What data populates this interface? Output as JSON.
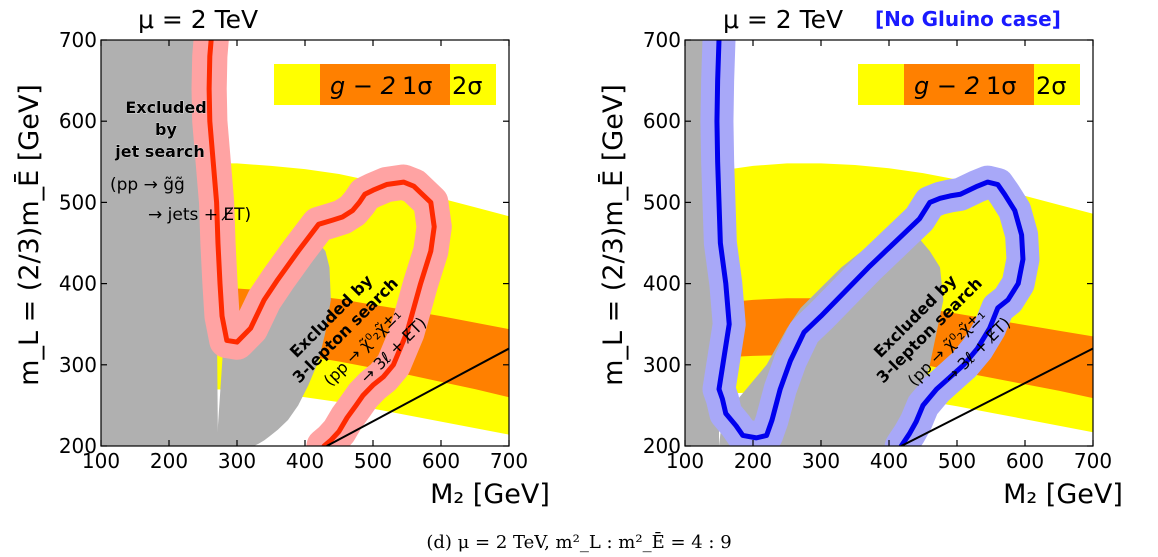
{
  "caption": "(d) μ = 2 TeV, m²_L : m²_Ē = 4 : 9",
  "colors": {
    "sigma1": "#ff8000",
    "sigma2": "#ffff00",
    "excluded": "#b0b0b0",
    "left_boundary": "#ff2a00",
    "left_band": "#ffa3a3",
    "right_boundary": "#0000ee",
    "right_band": "#a8a8f8",
    "no_gluino_label": "#1a1aff"
  },
  "chart_data": [
    {
      "type": "area",
      "title": "μ = 2 TeV",
      "title_note": "",
      "xlabel": "M₂ [GeV]",
      "ylabel": "m_L = (2/3)m_Ē [GeV]",
      "xlim": [
        100,
        700
      ],
      "ylim": [
        200,
        700
      ],
      "xticks": [
        "100",
        "200",
        "300",
        "400",
        "500",
        "600",
        "700"
      ],
      "yticks": [
        "200",
        "300",
        "400",
        "500",
        "600",
        "700"
      ],
      "legend": {
        "placement": "top-right",
        "label": "g − 2",
        "entries": [
          "1σ",
          "2σ"
        ]
      },
      "annotations": {
        "jet": [
          "Excluded",
          "by",
          "jet search",
          "(pp → g̃g̃",
          "→ jets + E̸T)"
        ],
        "lepton": [
          "Excluded by",
          "3-lepton search",
          "(pp → χ̃⁰₂χ̃±₁",
          "→ 3ℓ + E̸T)"
        ]
      },
      "series": [
        {
          "name": "g − 2 2σ",
          "x": [
            255,
            300,
            350,
            400,
            450,
            500,
            550,
            600,
            650,
            700
          ],
          "y_lower": [
            270,
            269,
            266,
            260,
            254,
            246,
            238,
            230,
            222,
            214
          ],
          "y_upper": [
            548,
            548,
            545,
            541,
            535,
            526,
            516,
            505,
            494,
            483
          ]
        },
        {
          "name": "g − 2 1σ",
          "x": [
            255,
            300,
            350,
            400,
            450,
            500,
            550,
            600,
            650,
            700
          ],
          "y_lower": [
            322,
            320,
            316,
            311,
            304,
            296,
            288,
            279,
            270,
            260
          ],
          "y_upper": [
            395,
            394,
            391,
            386,
            381,
            374,
            367,
            360,
            352,
            344
          ]
        }
      ],
      "excluded_jet": {
        "x": [
          100,
          255,
          260,
          262,
          268,
          270,
          272,
          100
        ],
        "y": [
          700,
          700,
          640,
          560,
          480,
          400,
          200,
          200
        ]
      },
      "excluded_3lepton": {
        "x": [
          270,
          280,
          300,
          330,
          350,
          375,
          395,
          410,
          422,
          430,
          436,
          438,
          430,
          420,
          405,
          390,
          375,
          360,
          348,
          340,
          332,
          325,
          270
        ],
        "y": [
          200,
          325,
          345,
          380,
          392,
          410,
          432,
          445,
          448,
          440,
          420,
          380,
          340,
          305,
          275,
          250,
          232,
          220,
          212,
          207,
          203,
          200,
          200
        ]
      },
      "contour_boundary": {
        "x": [
          262,
          260,
          259,
          260,
          265,
          270,
          272,
          275,
          278,
          285,
          300,
          320,
          340,
          360,
          390,
          420,
          440,
          455,
          470,
          480,
          488,
          500,
          520,
          545,
          560,
          585,
          590,
          585,
          570,
          560,
          550,
          540,
          530,
          515,
          500,
          485,
          475,
          462,
          450,
          438,
          428
        ],
        "y": [
          700,
          680,
          640,
          600,
          550,
          500,
          450,
          400,
          360,
          330,
          328,
          345,
          380,
          405,
          440,
          473,
          478,
          482,
          490,
          500,
          510,
          515,
          522,
          525,
          520,
          500,
          470,
          440,
          400,
          370,
          340,
          320,
          300,
          285,
          275,
          262,
          250,
          235,
          218,
          207,
          200
        ]
      },
      "band_width": 16,
      "diagonal": {
        "x": [
          432,
          700
        ],
        "y": [
          200,
          320
        ]
      }
    },
    {
      "type": "area",
      "title": "μ = 2 TeV",
      "title_note": "[No Gluino case]",
      "xlabel": "M₂ [GeV]",
      "ylabel": "m_L = (2/3)m_Ē [GeV]",
      "xlim": [
        100,
        700
      ],
      "ylim": [
        200,
        700
      ],
      "xticks": [
        "100",
        "200",
        "300",
        "400",
        "500",
        "600",
        "700"
      ],
      "yticks": [
        "200",
        "300",
        "400",
        "500",
        "600",
        "700"
      ],
      "legend": {
        "placement": "top-right",
        "label": "g − 2",
        "entries": [
          "1σ",
          "2σ"
        ]
      },
      "annotations": {
        "jet": [],
        "lepton": [
          "Excluded by",
          "3-lepton search",
          "(pp → χ̃⁰₂χ̃±₁",
          "→ 3ℓ + E̸T)"
        ]
      },
      "series": [
        {
          "name": "g − 2 2σ",
          "x": [
            100,
            150,
            200,
            250,
            300,
            350,
            400,
            450,
            500,
            550,
            600,
            650,
            700
          ],
          "y_lower": [
            262,
            264,
            266,
            268,
            268,
            266,
            262,
            256,
            249,
            241,
            233,
            225,
            217
          ],
          "y_upper": [
            530,
            539,
            545,
            548,
            548,
            546,
            542,
            536,
            528,
            519,
            508,
            497,
            486
          ]
        },
        {
          "name": "g − 2 1σ",
          "x": [
            100,
            150,
            200,
            250,
            300,
            350,
            400,
            450,
            500,
            550,
            600,
            650,
            700
          ],
          "y_lower": [
            306,
            309,
            311,
            312,
            312,
            310,
            306,
            300,
            292,
            284,
            276,
            268,
            259
          ],
          "y_upper": [
            372,
            376,
            380,
            382,
            382,
            380,
            376,
            370,
            363,
            356,
            349,
            342,
            335
          ]
        }
      ],
      "excluded_jet": {
        "x": [
          100,
          150,
          150,
          100
        ],
        "y": [
          700,
          700,
          200,
          200
        ]
      },
      "excluded_3lepton": {
        "x": [
          150,
          152,
          155,
          160,
          168,
          175,
          185,
          200,
          220,
          240,
          250,
          270,
          300,
          330,
          360,
          380,
          400,
          420,
          440,
          460,
          475,
          480,
          470,
          460,
          450,
          440,
          430,
          420,
          150
        ],
        "y": [
          200,
          215,
          225,
          235,
          245,
          255,
          265,
          280,
          300,
          330,
          345,
          370,
          395,
          420,
          440,
          455,
          465,
          470,
          460,
          440,
          420,
          380,
          340,
          300,
          270,
          240,
          220,
          200,
          200
        ]
      },
      "contour_boundary": {
        "x": [
          150,
          148,
          147,
          148,
          150,
          152,
          160,
          165,
          150,
          155,
          160,
          175,
          185,
          205,
          220,
          228,
          240,
          255,
          275,
          300,
          335,
          370,
          395,
          420,
          445,
          460,
          475,
          490,
          505,
          530,
          545,
          560,
          570,
          585,
          595,
          597,
          590,
          575,
          560,
          548,
          530,
          510,
          490,
          470,
          450,
          440,
          430,
          418
        ],
        "y": [
          700,
          650,
          600,
          550,
          500,
          450,
          400,
          350,
          270,
          258,
          240,
          225,
          213,
          210,
          213,
          232,
          270,
          305,
          340,
          360,
          390,
          420,
          440,
          460,
          480,
          500,
          505,
          508,
          510,
          520,
          525,
          522,
          510,
          490,
          460,
          430,
          400,
          380,
          370,
          345,
          320,
          300,
          285,
          270,
          250,
          230,
          215,
          200
        ]
      },
      "band_width": 15,
      "diagonal": {
        "x": [
          418,
          700
        ],
        "y": [
          200,
          320
        ]
      }
    }
  ]
}
